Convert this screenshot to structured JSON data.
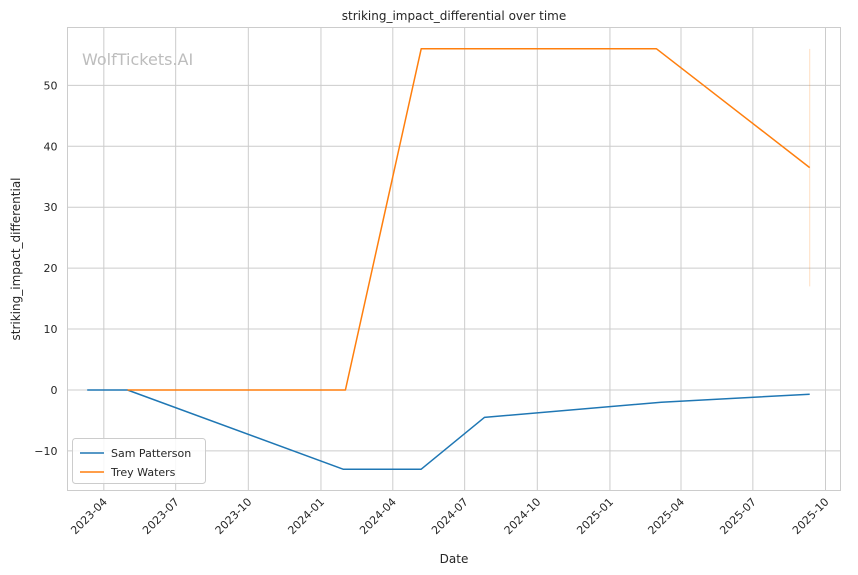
{
  "chart_data": {
    "type": "line",
    "title": "striking_impact_differential over time",
    "xlabel": "Date",
    "ylabel": "striking_impact_differential",
    "watermark": "WolfTickets.AI",
    "grid": true,
    "legend_position": "lower-left",
    "x_ticks": [
      "2023-04",
      "2023-07",
      "2023-10",
      "2024-01",
      "2024-04",
      "2024-07",
      "2024-10",
      "2025-01",
      "2025-04",
      "2025-07",
      "2025-10"
    ],
    "y_ticks": [
      -10,
      0,
      10,
      20,
      30,
      40,
      50
    ],
    "xlim": [
      "2023-02-14",
      "2025-10-20"
    ],
    "ylim": [
      -16.5,
      59.5
    ],
    "series": [
      {
        "name": "Sam Patterson",
        "color": "#1f77b4",
        "points": [
          {
            "x": "2023-03-11",
            "y": 0
          },
          {
            "x": "2023-05-01",
            "y": 0
          },
          {
            "x": "2024-01-29",
            "y": -13
          },
          {
            "x": "2024-05-07",
            "y": -13
          },
          {
            "x": "2024-07-26",
            "y": -4.5
          },
          {
            "x": "2025-03-07",
            "y": -2
          },
          {
            "x": "2025-09-11",
            "y": -0.7
          }
        ]
      },
      {
        "name": "Trey Waters",
        "color": "#ff7f0e",
        "points": [
          {
            "x": "2023-05-01",
            "y": 0
          },
          {
            "x": "2024-02-01",
            "y": 0
          },
          {
            "x": "2024-05-07",
            "y": 56
          },
          {
            "x": "2025-03-01",
            "y": 56
          },
          {
            "x": "2025-09-11",
            "y": 36.5
          }
        ],
        "error_band": {
          "x": "2025-09-11",
          "low": 17,
          "high": 56
        }
      }
    ]
  }
}
